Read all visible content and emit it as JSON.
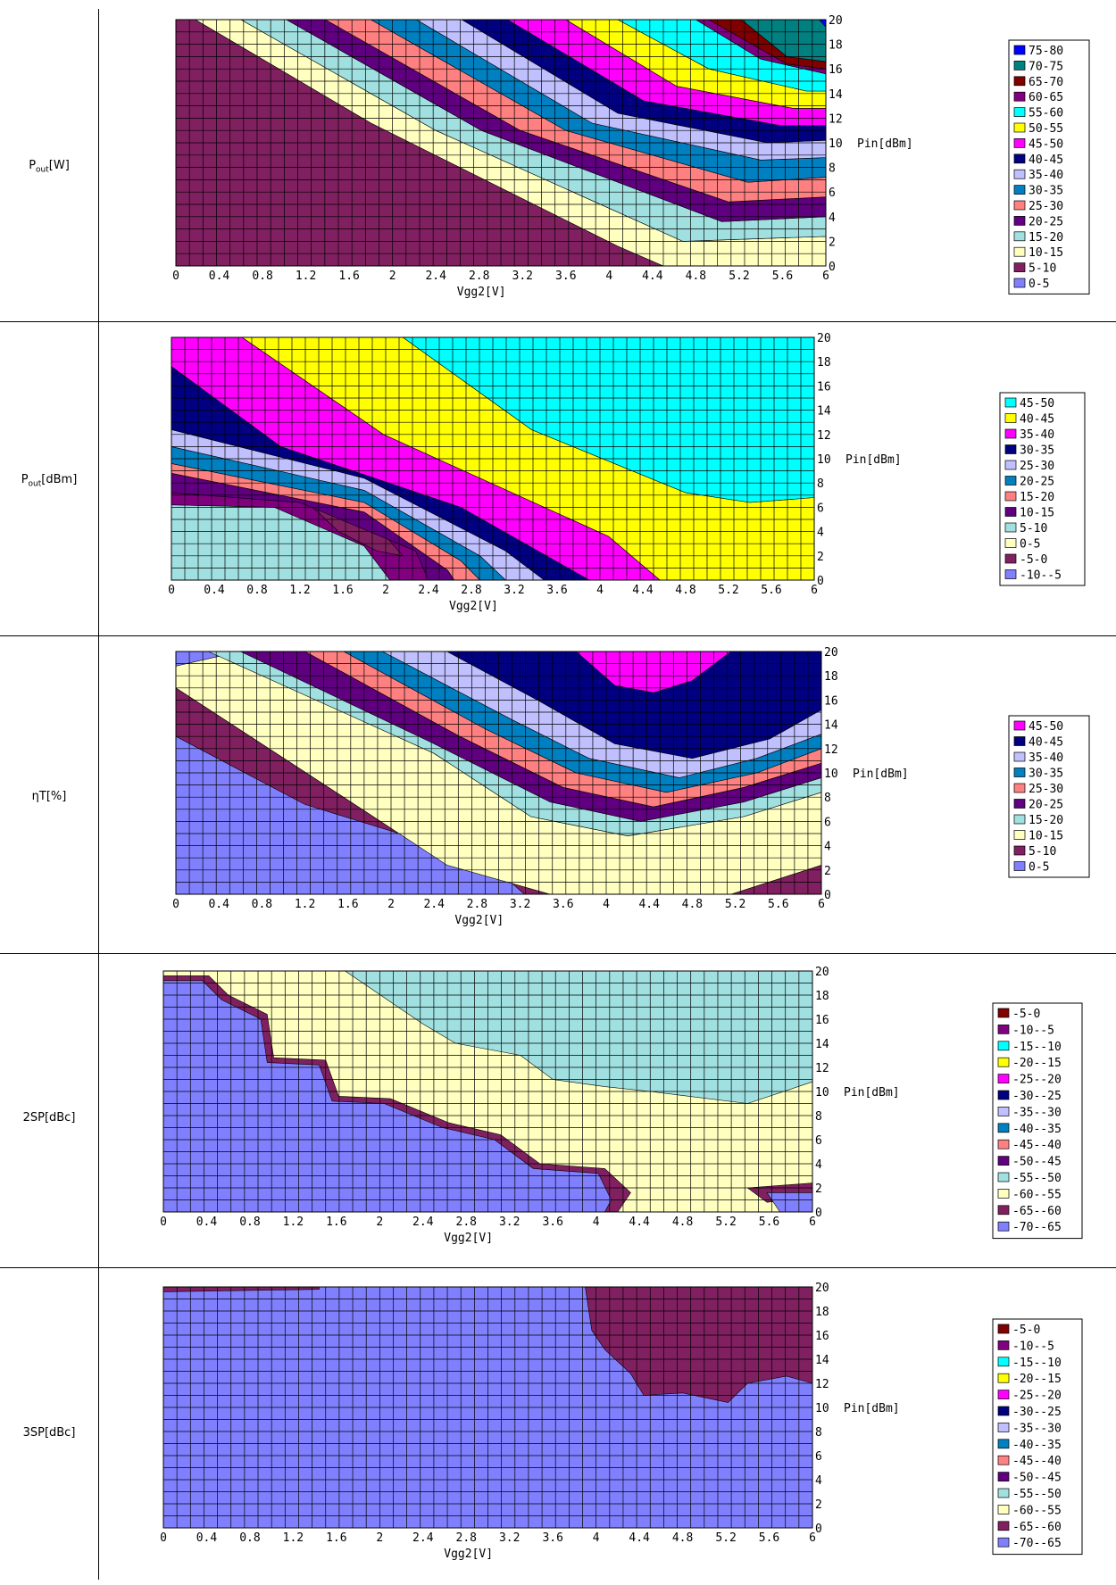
{
  "chart_data": [
    {
      "type": "heatmap",
      "row_label_main": "P",
      "row_label_sub": "out",
      "row_label_unit": "[W]",
      "xlabel": "Vgg2[V]",
      "ylabel": "Pin[dBm]",
      "x_ticks": [
        "0",
        "0.4",
        "0.8",
        "1.2",
        "1.6",
        "2",
        "2.4",
        "2.8",
        "3.2",
        "3.6",
        "4",
        "4.4",
        "4.8",
        "5.2",
        "5.6",
        "6"
      ],
      "y_ticks": [
        "0",
        "2",
        "4",
        "6",
        "8",
        "10",
        "12",
        "14",
        "16",
        "18",
        "20"
      ],
      "xlim": [
        0,
        6
      ],
      "ylim": [
        0,
        20
      ],
      "legend": [
        {
          "label": "75-80",
          "color": "#0000ff"
        },
        {
          "label": "70-75",
          "color": "#008080"
        },
        {
          "label": "65-70",
          "color": "#800000"
        },
        {
          "label": "60-65",
          "color": "#800080"
        },
        {
          "label": "55-60",
          "color": "#00ffff"
        },
        {
          "label": "50-55",
          "color": "#ffff00"
        },
        {
          "label": "45-50",
          "color": "#ff00ff"
        },
        {
          "label": "40-45",
          "color": "#000080"
        },
        {
          "label": "35-40",
          "color": "#c0c0ff"
        },
        {
          "label": "30-35",
          "color": "#0080c0"
        },
        {
          "label": "25-30",
          "color": "#ff8080"
        },
        {
          "label": "20-25",
          "color": "#600080"
        },
        {
          "label": "15-20",
          "color": "#a0e0e0"
        },
        {
          "label": "10-15",
          "color": "#ffffc0"
        },
        {
          "label": "5-10",
          "color": "#802060"
        },
        {
          "label": "0-5",
          "color": "#8080ff"
        }
      ]
    },
    {
      "type": "heatmap",
      "row_label_main": "P",
      "row_label_sub": "out",
      "row_label_unit": "[dBm]",
      "xlabel": "Vgg2[V]",
      "ylabel": "Pin[dBm]",
      "x_ticks": [
        "0",
        "0.4",
        "0.8",
        "1.2",
        "1.6",
        "2",
        "2.4",
        "2.8",
        "3.2",
        "3.6",
        "4",
        "4.4",
        "4.8",
        "5.2",
        "5.6",
        "6"
      ],
      "y_ticks": [
        "0",
        "2",
        "4",
        "6",
        "8",
        "10",
        "12",
        "14",
        "16",
        "18",
        "20"
      ],
      "xlim": [
        0,
        6
      ],
      "ylim": [
        0,
        20
      ],
      "legend": [
        {
          "label": "45-50",
          "color": "#00ffff"
        },
        {
          "label": "40-45",
          "color": "#ffff00"
        },
        {
          "label": "35-40",
          "color": "#ff00ff"
        },
        {
          "label": "30-35",
          "color": "#000080"
        },
        {
          "label": "25-30",
          "color": "#c0c0ff"
        },
        {
          "label": "20-25",
          "color": "#0080c0"
        },
        {
          "label": "15-20",
          "color": "#ff8080"
        },
        {
          "label": "10-15",
          "color": "#600080"
        },
        {
          "label": "5-10",
          "color": "#a0e0e0"
        },
        {
          "label": "0-5",
          "color": "#ffffc0"
        },
        {
          "label": "-5-0",
          "color": "#802060"
        },
        {
          "label": "-10--5",
          "color": "#8080ff"
        }
      ]
    },
    {
      "type": "heatmap",
      "row_label_main": "ηT[%]",
      "row_label_sub": "",
      "row_label_unit": "",
      "xlabel": "Vgg2[V]",
      "ylabel": "Pin[dBm]",
      "x_ticks": [
        "0",
        "0.4",
        "0.8",
        "1.2",
        "1.6",
        "2",
        "2.4",
        "2.8",
        "3.2",
        "3.6",
        "4",
        "4.4",
        "4.8",
        "5.2",
        "5.6",
        "6"
      ],
      "y_ticks": [
        "0",
        "2",
        "4",
        "6",
        "8",
        "10",
        "12",
        "14",
        "16",
        "18",
        "20"
      ],
      "xlim": [
        0,
        6
      ],
      "ylim": [
        0,
        20
      ],
      "legend": [
        {
          "label": "45-50",
          "color": "#ff00ff"
        },
        {
          "label": "40-45",
          "color": "#000080"
        },
        {
          "label": "35-40",
          "color": "#c0c0ff"
        },
        {
          "label": "30-35",
          "color": "#0080c0"
        },
        {
          "label": "25-30",
          "color": "#ff8080"
        },
        {
          "label": "20-25",
          "color": "#600080"
        },
        {
          "label": "15-20",
          "color": "#a0e0e0"
        },
        {
          "label": "10-15",
          "color": "#ffffc0"
        },
        {
          "label": "5-10",
          "color": "#802060"
        },
        {
          "label": "0-5",
          "color": "#8080ff"
        }
      ]
    },
    {
      "type": "heatmap",
      "row_label_main": "2SP[dBc]",
      "row_label_sub": "",
      "row_label_unit": "",
      "xlabel": "Vgg2[V]",
      "ylabel": "Pin[dBm]",
      "x_ticks": [
        "0",
        "0.4",
        "0.8",
        "1.2",
        "1.6",
        "2",
        "2.4",
        "2.8",
        "3.2",
        "3.6",
        "4",
        "4.4",
        "4.8",
        "5.2",
        "5.6",
        "6"
      ],
      "y_ticks": [
        "0",
        "2",
        "4",
        "6",
        "8",
        "10",
        "12",
        "14",
        "16",
        "18",
        "20"
      ],
      "xlim": [
        0,
        6
      ],
      "ylim": [
        0,
        20
      ],
      "legend": [
        {
          "label": "-5-0",
          "color": "#800000"
        },
        {
          "label": "-10--5",
          "color": "#800080"
        },
        {
          "label": "-15--10",
          "color": "#00ffff"
        },
        {
          "label": "-20--15",
          "color": "#ffff00"
        },
        {
          "label": "-25--20",
          "color": "#ff00ff"
        },
        {
          "label": "-30--25",
          "color": "#000080"
        },
        {
          "label": "-35--30",
          "color": "#c0c0ff"
        },
        {
          "label": "-40--35",
          "color": "#0080c0"
        },
        {
          "label": "-45--40",
          "color": "#ff8080"
        },
        {
          "label": "-50--45",
          "color": "#600080"
        },
        {
          "label": "-55--50",
          "color": "#a0e0e0"
        },
        {
          "label": "-60--55",
          "color": "#ffffc0"
        },
        {
          "label": "-65--60",
          "color": "#802060"
        },
        {
          "label": "-70--65",
          "color": "#8080ff"
        }
      ]
    },
    {
      "type": "heatmap",
      "row_label_main": "3SP[dBc]",
      "row_label_sub": "",
      "row_label_unit": "",
      "xlabel": "Vgg2[V]",
      "ylabel": "Pin[dBm]",
      "x_ticks": [
        "0",
        "0.4",
        "0.8",
        "1.2",
        "1.6",
        "2",
        "2.4",
        "2.8",
        "3.2",
        "3.6",
        "4",
        "4.4",
        "4.8",
        "5.2",
        "5.6",
        "6"
      ],
      "y_ticks": [
        "0",
        "2",
        "4",
        "6",
        "8",
        "10",
        "12",
        "14",
        "16",
        "18",
        "20"
      ],
      "xlim": [
        0,
        6
      ],
      "ylim": [
        0,
        20
      ],
      "legend": [
        {
          "label": "-5-0",
          "color": "#800000"
        },
        {
          "label": "-10--5",
          "color": "#800080"
        },
        {
          "label": "-15--10",
          "color": "#00ffff"
        },
        {
          "label": "-20--15",
          "color": "#ffff00"
        },
        {
          "label": "-25--20",
          "color": "#ff00ff"
        },
        {
          "label": "-30--25",
          "color": "#000080"
        },
        {
          "label": "-35--30",
          "color": "#c0c0ff"
        },
        {
          "label": "-40--35",
          "color": "#0080c0"
        },
        {
          "label": "-45--40",
          "color": "#ff8080"
        },
        {
          "label": "-50--45",
          "color": "#600080"
        },
        {
          "label": "-55--50",
          "color": "#a0e0e0"
        },
        {
          "label": "-60--55",
          "color": "#ffffc0"
        },
        {
          "label": "-65--60",
          "color": "#802060"
        },
        {
          "label": "-70--65",
          "color": "#8080ff"
        }
      ]
    }
  ]
}
